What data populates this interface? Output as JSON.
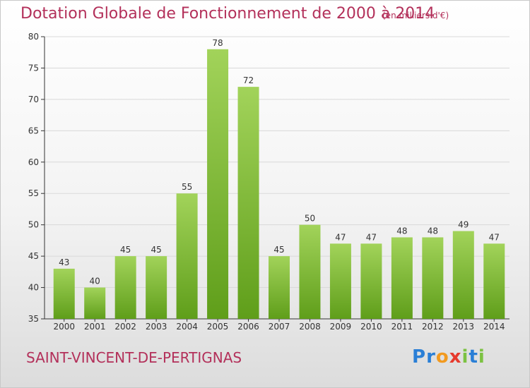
{
  "title": "Dotation Globale de Fonctionnement de 2000 à 2014",
  "unit_note": "(en milliers d'€)",
  "commune": "SAINT-VINCENT-DE-PERTIGNAS",
  "logo": {
    "text": "Proxiti",
    "letters": [
      "P",
      "r",
      "o",
      "x",
      "i",
      "t",
      "i"
    ],
    "colors": [
      "#2a7fd6",
      "#2a7fd6",
      "#f29a1f",
      "#e63a2d",
      "#7cc242",
      "#2a7fd6",
      "#7cc242"
    ]
  },
  "colors": {
    "title": "#b3305a",
    "bar_top": "#a2d35a",
    "bar_bottom": "#5f9e1a",
    "axis": "#333333",
    "grid": "#d9d9d9"
  },
  "chart_data": {
    "type": "bar",
    "categories": [
      "2000",
      "2001",
      "2002",
      "2003",
      "2004",
      "2005",
      "2006",
      "2007",
      "2008",
      "2009",
      "2010",
      "2011",
      "2012",
      "2013",
      "2014"
    ],
    "values": [
      43,
      40,
      45,
      45,
      55,
      78,
      72,
      45,
      50,
      47,
      47,
      48,
      48,
      49,
      47
    ],
    "ylim": [
      35,
      80
    ],
    "yticks": [
      35,
      40,
      45,
      50,
      55,
      60,
      65,
      70,
      75,
      80
    ],
    "grid": true,
    "data_labels": true
  }
}
